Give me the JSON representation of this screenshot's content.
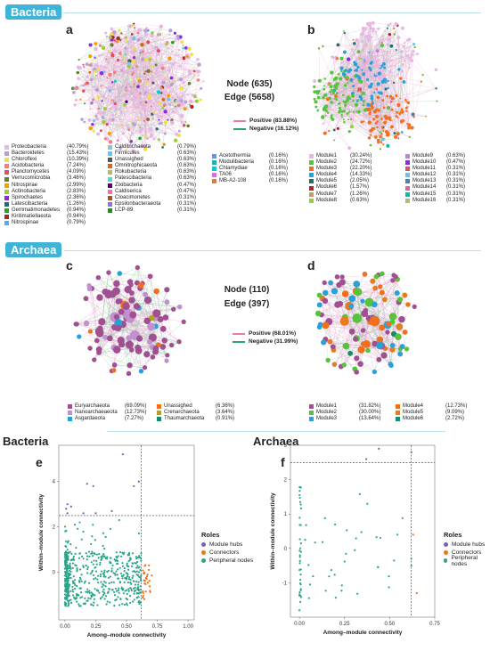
{
  "sections": {
    "bacteria": "Bacteria",
    "archaea": "Archaea"
  },
  "panels": {
    "a": "a",
    "b": "b",
    "c": "c",
    "d": "d",
    "e": "e",
    "f": "f"
  },
  "bacteria_stats": {
    "node": "Node (635)",
    "edge": "Edge (5658)"
  },
  "archaea_stats": {
    "node": "Node (110)",
    "edge": "Edge (397)"
  },
  "bacteria_edges": [
    {
      "label": "Positive (83.88%)",
      "color": "#e87aa8"
    },
    {
      "label": "Negative (16.12%)",
      "color": "#2aa56c"
    }
  ],
  "archaea_edges": [
    {
      "label": "Positive (68.01%)",
      "color": "#e87aa8"
    },
    {
      "label": "Negative (31.99%)",
      "color": "#2aa56c"
    }
  ],
  "bacteria_phyla": [
    {
      "name": "Proteobacteria",
      "pct": "(40.79%)",
      "color": "#e7b6e6"
    },
    {
      "name": "Bacteroidetes",
      "pct": "(15.43%)",
      "color": "#b6a0d6"
    },
    {
      "name": "Chloroflexi",
      "pct": "(10.39%)",
      "color": "#f0e040"
    },
    {
      "name": "Acidobacteria",
      "pct": "(7.24%)",
      "color": "#f08080"
    },
    {
      "name": "Planctomycetes",
      "pct": "(4.09%)",
      "color": "#e84a5f"
    },
    {
      "name": "Verrucomicrobia",
      "pct": "(3.46%)",
      "color": "#6a7d2a"
    },
    {
      "name": "Nitrospirae",
      "pct": "(2.99%)",
      "color": "#f0a000"
    },
    {
      "name": "Actinobacteria",
      "pct": "(2.83%)",
      "color": "#9acd32"
    },
    {
      "name": "Spirochaetes",
      "pct": "(2.36%)",
      "color": "#8a2be2"
    },
    {
      "name": "Latescibacteria",
      "pct": "(1.26%)",
      "color": "#1a6e6e"
    },
    {
      "name": "Gemmatimonadetes",
      "pct": "(0.94%)",
      "color": "#2ca02c"
    },
    {
      "name": "Kiritimatiellaeota",
      "pct": "(0.94%)",
      "color": "#b22222"
    },
    {
      "name": "Nitrospinae",
      "pct": "(0.79%)",
      "color": "#5fa8e0"
    },
    {
      "name": "Calditrichaeota",
      "pct": "(0.79%)",
      "color": "#7ec8e3"
    },
    {
      "name": "Firmicutes",
      "pct": "(0.63%)",
      "color": "#6ec0f0"
    },
    {
      "name": "Unassighed",
      "pct": "(0.63%)",
      "color": "#555555"
    },
    {
      "name": "Omnitrophicaeota",
      "pct": "(0.63%)",
      "color": "#d2691e"
    },
    {
      "name": "Rokubacteria",
      "pct": "(0.63%)",
      "color": "#bdb76b"
    },
    {
      "name": "Patescibacteria",
      "pct": "(0.63%)",
      "color": "#40e0d0"
    },
    {
      "name": "Zixibacteria",
      "pct": "(0.47%)",
      "color": "#4b0082"
    },
    {
      "name": "Caldiserica",
      "pct": "(0.47%)",
      "color": "#ff69b4"
    },
    {
      "name": "Cloacimonetes",
      "pct": "(0.31%)",
      "color": "#a0522d"
    },
    {
      "name": "Epsilonbacteraeota",
      "pct": "(0.31%)",
      "color": "#9370db"
    },
    {
      "name": "LCP-89",
      "pct": "(0.31%)",
      "color": "#228b22"
    },
    {
      "name": "Acetothermia",
      "pct": "(0.16%)",
      "color": "#6495ed"
    },
    {
      "name": "Modulibacteria",
      "pct": "(0.16%)",
      "color": "#20b2aa"
    },
    {
      "name": "Chlamydiae",
      "pct": "(0.16%)",
      "color": "#00ced1"
    },
    {
      "name": "TA06",
      "pct": "(0.16%)",
      "color": "#da70d6"
    },
    {
      "name": "MB-A2-108",
      "pct": "(0.16%)",
      "color": "#cd853f"
    }
  ],
  "bacteria_modules": [
    {
      "name": "Module1",
      "pct": "(30.24%)",
      "color": "#e7b6e6"
    },
    {
      "name": "Module2",
      "pct": "(24.72%)",
      "color": "#55c43a"
    },
    {
      "name": "Module3",
      "pct": "(22.20%)",
      "color": "#f07020"
    },
    {
      "name": "Module4",
      "pct": "(14.33%)",
      "color": "#2aa0d8"
    },
    {
      "name": "Module5",
      "pct": "(2.05%)",
      "color": "#1a6e6e"
    },
    {
      "name": "Module6",
      "pct": "(1.57%)",
      "color": "#b22222"
    },
    {
      "name": "Module7",
      "pct": "(1.26%)",
      "color": "#c0a060"
    },
    {
      "name": "Module8",
      "pct": "(0.63%)",
      "color": "#9acd32"
    },
    {
      "name": "Module9",
      "pct": "(0.63%)",
      "color": "#c080e0"
    },
    {
      "name": "Module10",
      "pct": "(0.47%)",
      "color": "#8a2be2"
    },
    {
      "name": "Module11",
      "pct": "(0.31%)",
      "color": "#e84a5f"
    },
    {
      "name": "Module12",
      "pct": "(0.31%)",
      "color": "#6ec0f0"
    },
    {
      "name": "Module13",
      "pct": "(0.31%)",
      "color": "#4682b4"
    },
    {
      "name": "Module14",
      "pct": "(0.31%)",
      "color": "#e060a0"
    },
    {
      "name": "Module15",
      "pct": "(0.31%)",
      "color": "#20b2aa"
    },
    {
      "name": "Module16",
      "pct": "(0.31%)",
      "color": "#bdb76b"
    }
  ],
  "archaea_phyla": [
    {
      "name": "Euryarchaeota",
      "pct": "(69.09%)",
      "color": "#a05090"
    },
    {
      "name": "Nanoarchaeaeota",
      "pct": "(12.73%)",
      "color": "#c090d0"
    },
    {
      "name": "Asgardaeota",
      "pct": "(7.27%)",
      "color": "#2aa0d8"
    },
    {
      "name": "Unassighed",
      "pct": "(6.36%)",
      "color": "#f07020"
    },
    {
      "name": "Crenarchaeota",
      "pct": "(3.64%)",
      "color": "#b8a020"
    },
    {
      "name": "Thaumarchaeota",
      "pct": "(0.91%)",
      "color": "#1a8a6e"
    }
  ],
  "archaea_modules": [
    {
      "name": "Module1",
      "pct": "(31.82%)",
      "color": "#a05090"
    },
    {
      "name": "Module2",
      "pct": "(30.00%)",
      "color": "#55c43a"
    },
    {
      "name": "Module3",
      "pct": "(13.64%)",
      "color": "#2aa0d8"
    },
    {
      "name": "Module4",
      "pct": "(12.73%)",
      "color": "#f07020"
    },
    {
      "name": "Module5",
      "pct": "(9.09%)",
      "color": "#e87a20"
    },
    {
      "name": "Module6",
      "pct": "(2.72%)",
      "color": "#1a8a6e"
    }
  ],
  "plot_e": {
    "title": "Bacteria",
    "xlabel": "Among–module connectivity",
    "ylabel": "Within–module connectivity",
    "xticks": [
      "0.00",
      "0.25",
      "0.50",
      "0.75",
      "1.00"
    ],
    "yticks": [
      "0",
      "2",
      "4"
    ],
    "xlim": [
      -0.05,
      1.05
    ],
    "ylim": [
      -2.1,
      5.6
    ],
    "xthr": 0.62,
    "ythr": 2.5
  },
  "plot_f": {
    "title": "Archaea",
    "xlabel": "Among–module connectivity",
    "ylabel": "Within–module connectivity",
    "xticks": [
      "0.00",
      "0.25",
      "0.50",
      "0.75"
    ],
    "yticks": [
      "-1",
      "0",
      "1",
      "2",
      "3"
    ],
    "xlim": [
      -0.05,
      0.75
    ],
    "ylim": [
      -2.0,
      3.0
    ],
    "xthr": 0.62,
    "ythr": 2.5
  },
  "roles": {
    "title": "Roles",
    "items": [
      {
        "label": "Module hubs",
        "color": "#7060b0"
      },
      {
        "label": "Connectors",
        "color": "#f07020"
      },
      {
        "label": "Peripheral nodes",
        "color": "#2aa58c"
      }
    ]
  }
}
